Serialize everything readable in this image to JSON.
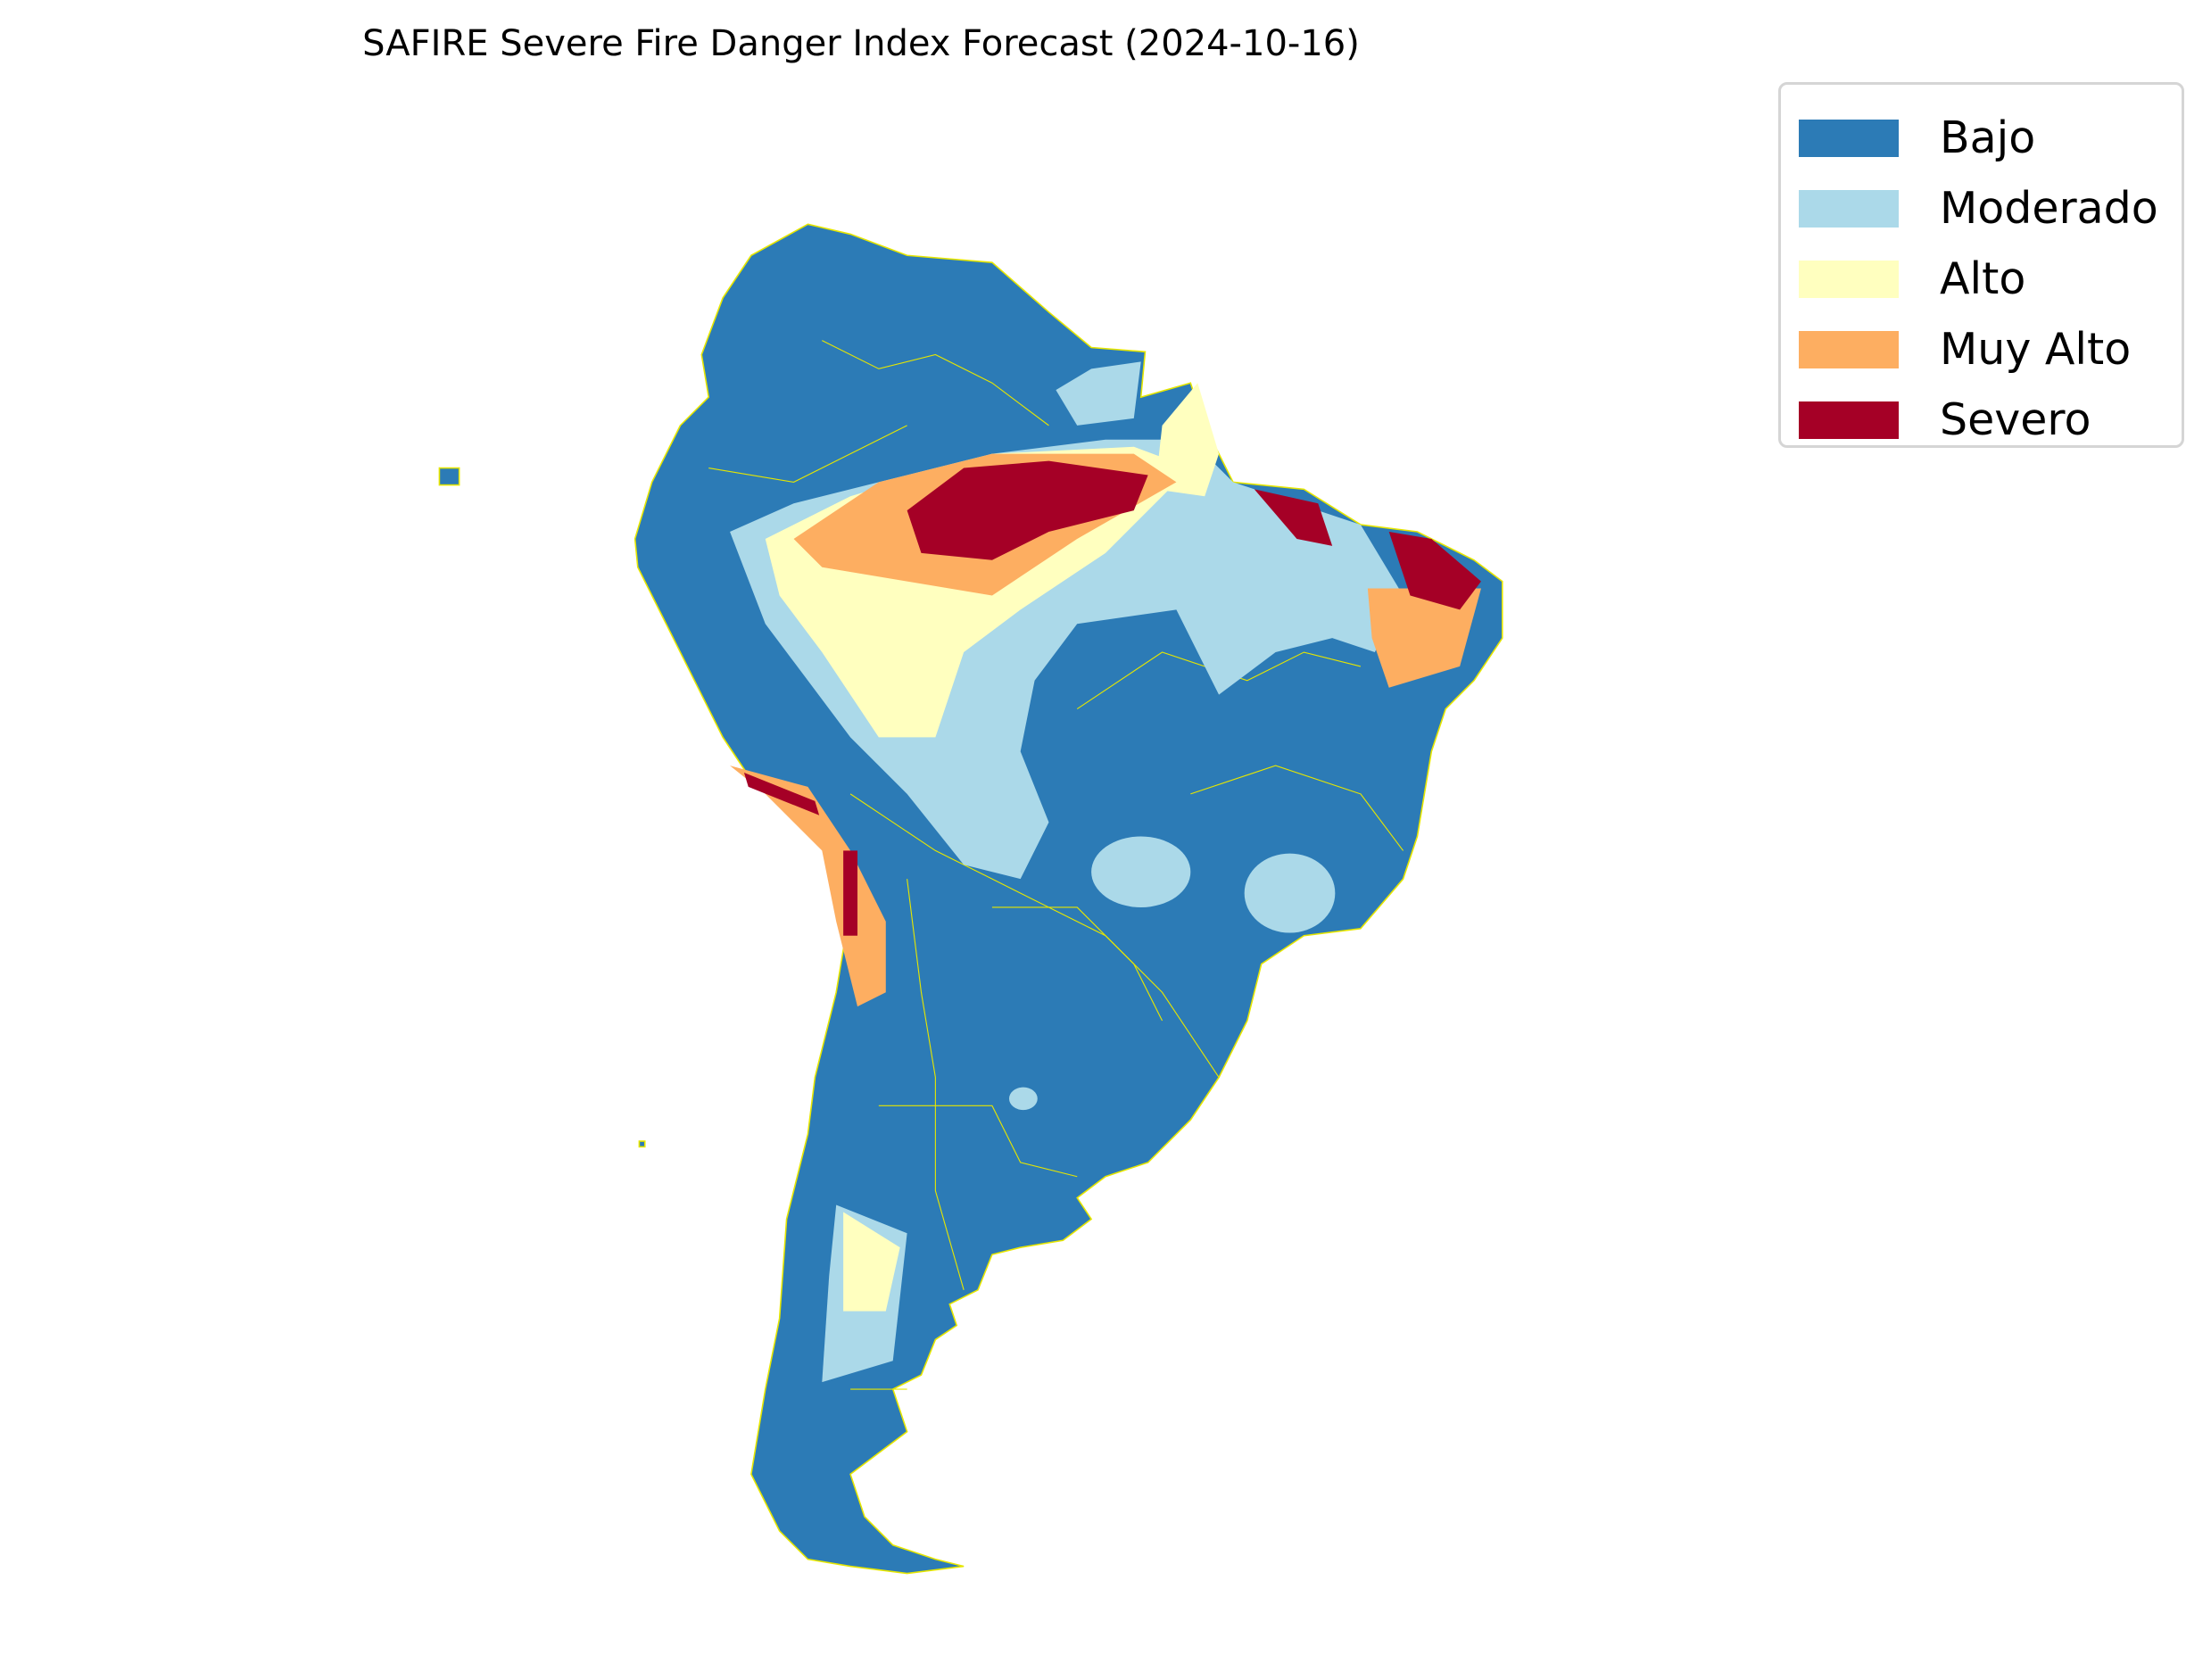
{
  "title": "SAFIRE Severe Fire Danger Index Forecast (2024-10-16)",
  "legend": [
    {
      "label": "Bajo",
      "color": "#2c7bb6"
    },
    {
      "label": "Moderado",
      "color": "#abd9e9"
    },
    {
      "label": "Alto",
      "color": "#ffffbf"
    },
    {
      "label": "Muy Alto",
      "color": "#fdae61"
    },
    {
      "label": "Severo",
      "color": "#a50026"
    }
  ],
  "border_color": "#e6e600",
  "region": "South America"
}
